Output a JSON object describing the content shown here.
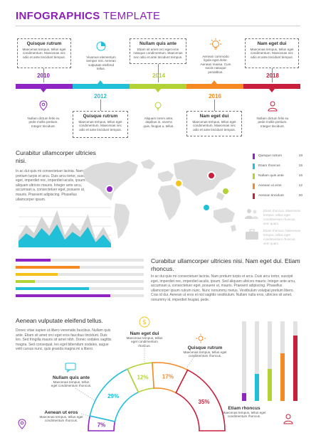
{
  "header": {
    "title_bold": "INFOGRAPHICS",
    "title_light": "TEMPLATE"
  },
  "colors": {
    "purple": "#8f25c2",
    "cyan": "#21c0d8",
    "green": "#b2d235",
    "orange": "#f58a22",
    "red": "#c81f3d"
  },
  "timeline": {
    "years": [
      "2010",
      "2012",
      "2014",
      "2016",
      "2018"
    ],
    "box1": {
      "title": "Quisque rutrum",
      "text": "Maecenas tempus, tellus eget condimentum. Maecenas nec odio et ante tincidunt tempus."
    },
    "box2": {
      "title": "Quisque rutrum",
      "text": "Maecenas tempus, tellus eget condimentum. Maecenas nec odio et ante tincidunt tempus."
    },
    "box3": {
      "title": "Nullam quis ante",
      "text": "Etiam sit amet orci eget eros natoque condimentum. Maecenas nec odio et ante tincidunt tempus."
    },
    "box4": {
      "title": "Nam eget dui",
      "text": "Maecenas tempus, tellus eget condimentum. Maecenas nec odio et ante tincidunt tempus."
    },
    "box5": {
      "title": "Nam eget dui",
      "text": "Maecenas tempus, tellus eget condimentum. Maecenas nec odio et ante tincidunt tempus."
    },
    "icontext1": "Vivamus elementum semper nisi. Aenean vulputate eleifend tellus.",
    "icontext2": "Aenean commodo ligula eget dolor. Aenean massa. Cum sociis natoque penatibus.",
    "icontext3": "Nullam dictum felis eu pede mollis pretium. Integer tincidunt.",
    "icontext4": "Aliquam lorem ante, dapibus in, viverra quis, feugiat a, tellus.",
    "icontext5": "Nullam dictum felis eu pede mollis pretium. Integer tincidunt."
  },
  "map_section": {
    "heading": "Curabitur ullamcorper ultricies nisi.",
    "paragraph": "In ac dui quis mi consectetuer lacinia. Nam pretium turpis et arcu. Duis arcu tortor, suscipit eget, imperdiet nec, imperdiet iaculis, ipsum. Sed aliquam ultrices mauris. Integer ante arcu, accumsan a, consectetuer eget, posuere ut, mauris. Praesent adipiscing. Phasellus ullamcorper ipsum.",
    "legend": [
      {
        "label": "Quisque rutrum",
        "value": "18"
      },
      {
        "label": "Etiam rhoncus",
        "value": "15"
      },
      {
        "label": "Nullam quis ante",
        "value": "16"
      },
      {
        "label": "Aenean ut eros",
        "value": "12"
      },
      {
        "label": "Aenean tincidunt",
        "value": "20"
      }
    ],
    "grey_text1": "Etiam rhoncus. Maecenas tempus, tellus eget condimentum rhoncus, sem quam.",
    "grey_text2": "Etiam rhoncus. Maecenas tempus, tellus eget condimentum rhoncus, sem quam."
  },
  "bars_section": {
    "heading": "Curabitur ullamcorper ultricies nisi. Nam eget dui. Etiam rhoncus.",
    "paragraph": "In ac dui quis mi consectetuer lacinia. Nam pretium turpis et arcu. Duis arcu tortor, suscipit eget, imperdiet nec, imperdiet iaculis, ipsum. Sed aliquam ultrices mauris. Integer ante arcu, accumsan a, consectetuer eget, posuere ut, mauris. Praesent adipiscing. Phasellus ullamcorper ipsum rutrum nunc. Nunc nonummy metus. Vestibulum volutpat pretium libero. Cras id dui. Aenean ut eros et nisl sagittis vestibulum. Nullam nulla eros, ultricies sit amet, nonummy id, imperdiet feugiat, pede.",
    "bars": [
      {
        "color": "#8f25c2",
        "fraction": 0.27
      },
      {
        "color": "#f58a22",
        "fraction": 0.5
      },
      {
        "color": "#f5c21b",
        "fraction": 0.33
      },
      {
        "color": "#b2d235",
        "fraction": 0.15
      },
      {
        "color": "#21c0d8",
        "fraction": 0.57
      },
      {
        "color": "#8f25c2",
        "fraction": 0.74
      }
    ]
  },
  "area_chart": {
    "values": [
      0.25,
      0.55,
      0.35,
      0.75,
      0.45,
      0.9,
      0.3,
      0.6,
      0.4,
      0.8,
      0.2,
      0.5,
      0.15
    ]
  },
  "bottom_section": {
    "heading": "Aenean vulputate eleifend tellus.",
    "paragraph": "Donec vitae sapien ut libero venenatis faucibus. Nullam quis ante. Etiam sit amet orci eget eros faucibus tincidunt. Duis leo. Sed fringilla mauris sit amet nibh. Donec sodales sagittis magna. Sed consequat, leo eget bibendum sodales, augue velit cursus nunc, quis gravida magna mi a libero.",
    "gauge": [
      {
        "label": "7%",
        "value": 7,
        "color": "#8f25c2"
      },
      {
        "label": "29%",
        "value": 29,
        "color": "#21c0d8"
      },
      {
        "label": "12%",
        "value": 12,
        "color": "#b2d235"
      },
      {
        "label": "17%",
        "value": 17,
        "color": "#f58a22"
      },
      {
        "label": "35%",
        "value": 35,
        "color": "#c81f3d"
      }
    ],
    "blk_nam": {
      "title": "Nam eget dui",
      "text": "Maecenas tempus, tellus eget condimentum rhoncus."
    },
    "blk_quisque": {
      "title": "Quisque rutrum",
      "text": "Maecenas tempus, tellus eget condimentum rhoncus."
    },
    "blk_nullam": {
      "title": "Nullam quis ante",
      "text": "Maecenas tempus, tellus eget condimentum rhoncus."
    },
    "blk_aenean": {
      "title": "Aenean ut eros",
      "text": "Maecenas tempus, tellus eget condimentum rhoncus."
    },
    "blk_etiam": {
      "title": "Etiam rhoncus",
      "text": "Maecenas tempus, tellus eget condimentum rhoncus."
    },
    "vbars": [
      {
        "color": "#8f25c2",
        "fraction": 0.1
      },
      {
        "color": "#21c0d8",
        "fraction": 0.34
      },
      {
        "color": "#b2d235",
        "fraction": 0.4
      },
      {
        "color": "#f58a22",
        "fraction": 0.6
      },
      {
        "color": "#c81f3d",
        "fraction": 0.82
      }
    ]
  }
}
